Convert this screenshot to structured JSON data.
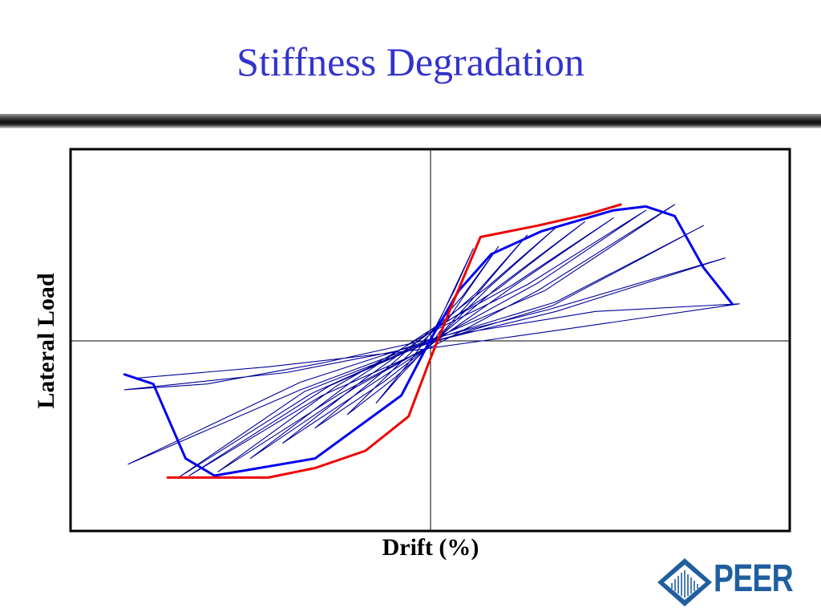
{
  "slide": {
    "title": "Stiffness Degradation",
    "colors": {
      "title": "#3333cc",
      "hysteresis": "#000099",
      "envelope_blue": "#0000ee",
      "envelope_red": "#ee0000",
      "logo": "#1f5f9f"
    }
  },
  "chart_data": {
    "type": "line",
    "xlabel": "Drift (%)",
    "ylabel": "Lateral Load",
    "xlim": [
      -10,
      10
    ],
    "ylim": [
      -1,
      1
    ],
    "grid": false,
    "legend": "none",
    "tick_labels": "none",
    "series": [
      {
        "role": "hysteresis",
        "color": "#000099",
        "x": [
          0.1,
          0.7,
          1.2,
          0.5,
          -0.1,
          -0.8,
          -1.5,
          -0.6,
          0.1,
          0.9,
          1.9,
          0.9,
          0.0,
          -1.0,
          -2.3,
          -1.0,
          0.1,
          1.3,
          2.7,
          1.3,
          0.0,
          -1.3,
          -3.2,
          -1.4,
          0.0,
          1.6,
          3.5,
          1.6,
          0.0,
          -1.7,
          -4.1,
          -1.8,
          0.0,
          1.9,
          4.3,
          1.9,
          -0.1,
          -2.1,
          -5.0,
          -2.2,
          -0.1,
          2.3,
          5.1,
          2.3,
          -0.1,
          -2.5,
          -5.9,
          -2.6,
          -0.1,
          2.7,
          6.0,
          3.0,
          0.2,
          -2.8,
          -6.7,
          -3.0,
          0.0,
          3.0,
          6.8,
          3.2,
          0.0,
          -3.3,
          -7.0,
          -3.5,
          -0.1,
          3.4,
          7.6,
          3.5,
          0.0,
          -3.6,
          -8.4,
          -3.6,
          -0.2,
          3.5,
          8.2,
          3.3,
          -0.1,
          -3.0,
          -6.2,
          -8.5,
          -4.0,
          -1.0,
          1.0,
          4.6,
          8.6,
          3.5,
          -0.3,
          -4.5,
          -8.2
        ],
        "y": [
          0.05,
          0.27,
          0.48,
          0.2,
          -0.04,
          -0.18,
          -0.33,
          -0.12,
          0.06,
          0.23,
          0.49,
          0.22,
          -0.03,
          -0.2,
          -0.39,
          -0.15,
          0.05,
          0.25,
          0.55,
          0.24,
          -0.03,
          -0.22,
          -0.46,
          -0.18,
          0.05,
          0.28,
          0.59,
          0.27,
          -0.03,
          -0.24,
          -0.54,
          -0.2,
          0.04,
          0.27,
          0.62,
          0.28,
          -0.04,
          -0.25,
          -0.62,
          -0.22,
          0.04,
          0.29,
          0.64,
          0.28,
          -0.04,
          -0.28,
          -0.69,
          -0.24,
          0.03,
          0.29,
          0.68,
          0.3,
          0.01,
          -0.24,
          -0.71,
          -0.29,
          -0.04,
          0.26,
          0.71,
          0.26,
          0.0,
          -0.28,
          -0.72,
          -0.27,
          -0.02,
          0.18,
          0.6,
          0.2,
          0.0,
          -0.22,
          -0.65,
          -0.26,
          -0.02,
          0.15,
          0.43,
          0.16,
          0.0,
          -0.12,
          -0.23,
          -0.26,
          -0.17,
          -0.06,
          0.04,
          0.15,
          0.19,
          0.05,
          -0.05,
          -0.14,
          -0.2
        ]
      },
      {
        "role": "envelope",
        "color": "#0000ee",
        "x": [
          -8.5,
          -7.7,
          -6.8,
          -6.0,
          -3.2,
          -0.8,
          0.0,
          0.8,
          1.7,
          3.1,
          5.1,
          6.0,
          6.8,
          7.6,
          8.4
        ],
        "y": [
          -0.18,
          -0.23,
          -0.62,
          -0.71,
          -0.62,
          -0.29,
          0.0,
          0.26,
          0.45,
          0.57,
          0.68,
          0.7,
          0.65,
          0.38,
          0.19
        ]
      },
      {
        "role": "envelope",
        "color": "#ee0000",
        "x": [
          -7.3,
          -4.5,
          -3.2,
          -1.8,
          -0.6,
          0.0,
          0.6,
          1.4,
          3.0,
          4.4,
          5.3
        ],
        "y": [
          -0.72,
          -0.72,
          -0.67,
          -0.58,
          -0.4,
          -0.1,
          0.18,
          0.54,
          0.6,
          0.66,
          0.71
        ]
      }
    ]
  },
  "logo": {
    "text": "PEER"
  }
}
